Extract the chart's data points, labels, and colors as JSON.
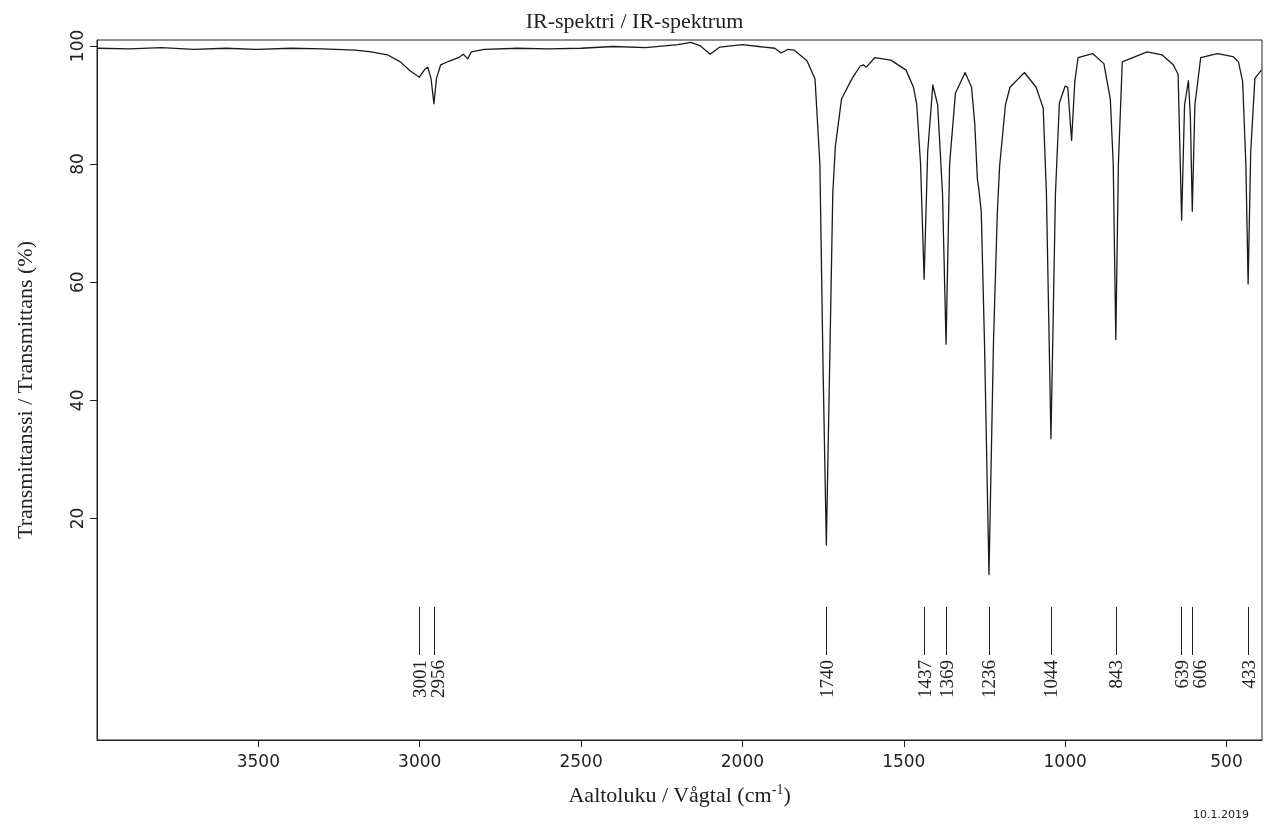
{
  "chart_data": {
    "type": "line",
    "title": "IR-spektri / IR-spektrum",
    "xlabel": "Aaltoluku / Vågtal (cm$^{-1}$)",
    "ylabel": "Transmittanssi / Transmittans (%)",
    "xlim": [
      4000,
      390
    ],
    "xticks": [
      3500,
      3000,
      2500,
      2000,
      1500,
      1000,
      500
    ],
    "ylim": [
      -17.5,
      101
    ],
    "yticks": [
      20,
      40,
      60,
      80,
      100
    ],
    "grid": false,
    "marker": "none",
    "line_style": "solid",
    "series": [
      {
        "color": "#1a1a1a",
        "x": [
          4000,
          3900,
          3800,
          3700,
          3600,
          3500,
          3400,
          3300,
          3200,
          3150,
          3100,
          3060,
          3030,
          3001,
          2985,
          2975,
          2965,
          2956,
          2948,
          2935,
          2910,
          2880,
          2865,
          2851,
          2840,
          2800,
          2700,
          2600,
          2500,
          2400,
          2300,
          2200,
          2160,
          2130,
          2100,
          2070,
          2000,
          1950,
          1900,
          1880,
          1860,
          1840,
          1800,
          1775,
          1760,
          1750,
          1740,
          1730,
          1720,
          1712,
          1693,
          1660,
          1635,
          1625,
          1616,
          1590,
          1540,
          1493,
          1470,
          1460,
          1448,
          1437,
          1426,
          1410,
          1395,
          1380,
          1369,
          1358,
          1340,
          1310,
          1290,
          1280,
          1272,
          1268,
          1260,
          1250,
          1236,
          1222,
          1210,
          1203,
          1185,
          1171,
          1126,
          1090,
          1068,
          1058,
          1044,
          1030,
          1018,
          1000,
          992,
          980,
          970,
          960,
          915,
          880,
          860,
          851,
          843,
          835,
          823,
          746,
          700,
          665,
          650,
          639,
          630,
          618,
          612,
          606,
          598,
          580,
          528,
          480,
          463,
          450,
          440,
          433,
          425,
          412,
          392
        ],
        "values": [
          99.6,
          99.5,
          99.7,
          99.4,
          99.6,
          99.4,
          99.6,
          99.5,
          99.3,
          99.0,
          98.5,
          97.3,
          95.8,
          94.7,
          96.0,
          96.4,
          94.5,
          90.2,
          94.5,
          96.8,
          97.4,
          98.0,
          98.6,
          97.8,
          99.0,
          99.4,
          99.6,
          99.5,
          99.6,
          99.9,
          99.7,
          100.2,
          100.6,
          100.0,
          98.6,
          99.8,
          100.2,
          99.9,
          99.6,
          98.8,
          99.4,
          99.3,
          97.5,
          94.4,
          80,
          45,
          15.5,
          45,
          75,
          83,
          91,
          94.5,
          96.6,
          96.8,
          96.4,
          98.0,
          97.6,
          95.9,
          93,
          90.2,
          80,
          60.5,
          82,
          93.4,
          90,
          75,
          49.5,
          80,
          92,
          95.5,
          93,
          86.8,
          77.5,
          76,
          72,
          50,
          10.5,
          50,
          72,
          79.7,
          90,
          93,
          95.5,
          93,
          89.5,
          75,
          33.5,
          75,
          90.3,
          93.2,
          93,
          84,
          94,
          98,
          98.7,
          97,
          91,
          80,
          50.3,
          80,
          97.3,
          99,
          98.5,
          96.8,
          95.2,
          70.5,
          90,
          94.1,
          88,
          72,
          90,
          98,
          98.7,
          98.2,
          97.3,
          94,
          80,
          59.7,
          82,
          94.5,
          95.9
        ]
      }
    ],
    "ref_lines": [
      {
        "axis": "x",
        "value": 3001,
        "label": "3001"
      },
      {
        "axis": "x",
        "value": 2956,
        "label": "2956"
      },
      {
        "axis": "x",
        "value": 1740,
        "label": "1740"
      },
      {
        "axis": "x",
        "value": 1437,
        "label": "1437"
      },
      {
        "axis": "x",
        "value": 1369,
        "label": "1369"
      },
      {
        "axis": "x",
        "value": 1236,
        "label": "1236"
      },
      {
        "axis": "x",
        "value": 1044,
        "label": "1044"
      },
      {
        "axis": "x",
        "value": 843,
        "label": "843"
      },
      {
        "axis": "x",
        "value": 639,
        "label": "639"
      },
      {
        "axis": "x",
        "value": 606,
        "label": "606"
      },
      {
        "axis": "x",
        "value": 433,
        "label": "433"
      }
    ],
    "annotations": [
      "10.1.2019"
    ]
  }
}
